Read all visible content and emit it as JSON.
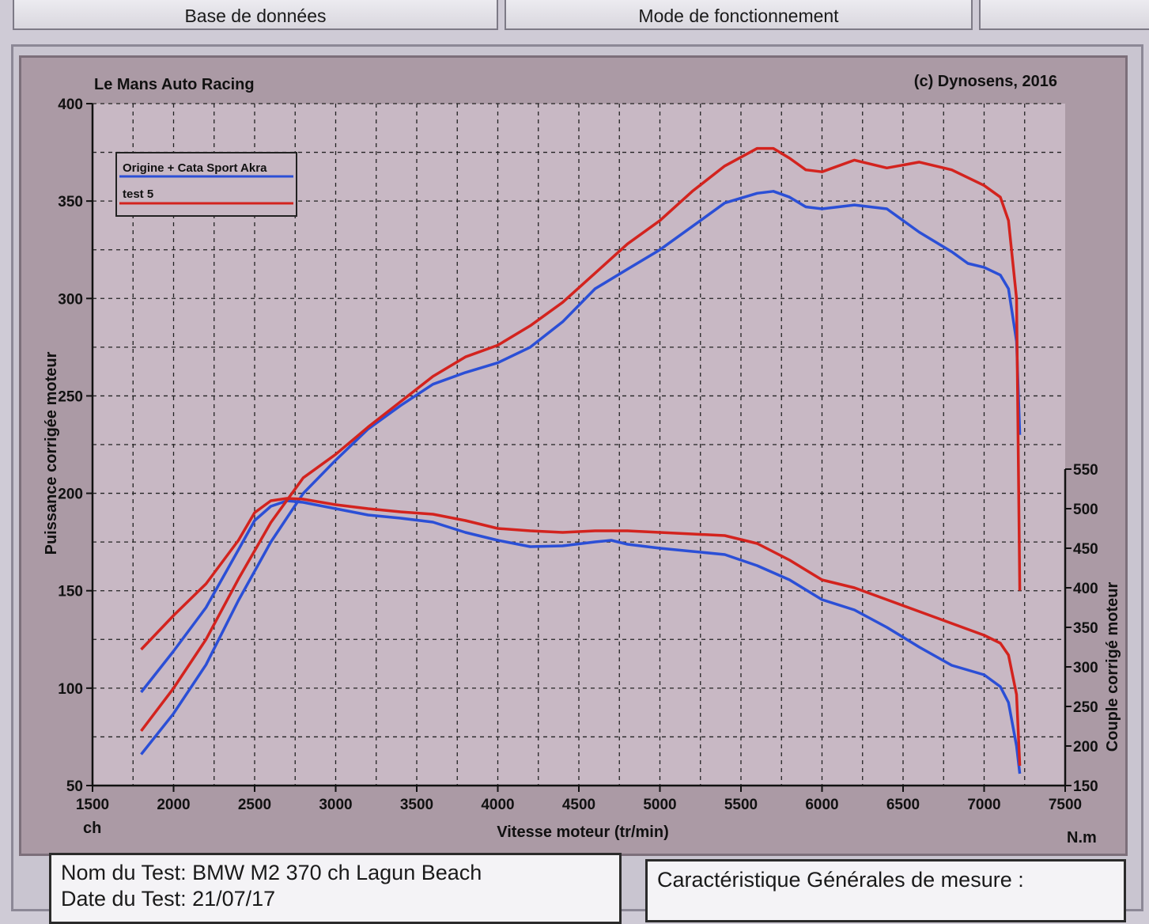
{
  "tabs": [
    "Base de données",
    "Mode de fonctionnement",
    ""
  ],
  "chart_data": {
    "type": "line",
    "title_left": "Le Mans Auto Racing",
    "title_right": "(c) Dynosens, 2016",
    "xlabel": "Vitesse moteur (tr/min)",
    "ylabel_left": "Puissance corrigée moteur",
    "ylabel_right": "Couple corrigé moteur",
    "unit_left": "ch",
    "unit_right": "N.m",
    "xlim": [
      1500,
      7500
    ],
    "ylim_left": [
      50,
      400
    ],
    "ylim_right": [
      150,
      550
    ],
    "x_ticks": [
      1500,
      2000,
      2500,
      3000,
      3500,
      4000,
      4500,
      5000,
      5500,
      6000,
      6500,
      7000,
      7500
    ],
    "y_ticks_left": [
      50,
      100,
      150,
      200,
      250,
      300,
      350,
      400
    ],
    "y_ticks_right": [
      150,
      200,
      250,
      300,
      350,
      400,
      450,
      500,
      550
    ],
    "grid": true,
    "legend_position": "top-left",
    "series": [
      {
        "name": "Origine + Cata Sport Akra",
        "color": "#2b4fd6",
        "power": [
          [
            1800,
            66
          ],
          [
            2000,
            87
          ],
          [
            2200,
            112
          ],
          [
            2400,
            145
          ],
          [
            2600,
            175
          ],
          [
            2800,
            200
          ],
          [
            3000,
            217
          ],
          [
            3200,
            233
          ],
          [
            3400,
            245
          ],
          [
            3600,
            256
          ],
          [
            3800,
            262
          ],
          [
            4000,
            267
          ],
          [
            4200,
            275
          ],
          [
            4400,
            288
          ],
          [
            4600,
            305
          ],
          [
            4800,
            315
          ],
          [
            5000,
            325
          ],
          [
            5200,
            337
          ],
          [
            5400,
            349
          ],
          [
            5600,
            354
          ],
          [
            5700,
            355
          ],
          [
            5800,
            352
          ],
          [
            5900,
            347
          ],
          [
            6000,
            346
          ],
          [
            6200,
            348
          ],
          [
            6400,
            346
          ],
          [
            6600,
            334
          ],
          [
            6800,
            324
          ],
          [
            6900,
            318
          ],
          [
            7000,
            316
          ],
          [
            7100,
            312
          ],
          [
            7150,
            305
          ],
          [
            7200,
            278
          ],
          [
            7220,
            230
          ]
        ],
        "torque": [
          [
            1800,
            268
          ],
          [
            2000,
            320
          ],
          [
            2200,
            375
          ],
          [
            2400,
            448
          ],
          [
            2500,
            485
          ],
          [
            2600,
            503
          ],
          [
            2700,
            510
          ],
          [
            2800,
            508
          ],
          [
            3000,
            500
          ],
          [
            3200,
            492
          ],
          [
            3400,
            488
          ],
          [
            3600,
            483
          ],
          [
            3800,
            470
          ],
          [
            4000,
            460
          ],
          [
            4200,
            452
          ],
          [
            4400,
            453
          ],
          [
            4600,
            458
          ],
          [
            4700,
            460
          ],
          [
            4800,
            455
          ],
          [
            5000,
            450
          ],
          [
            5200,
            446
          ],
          [
            5400,
            442
          ],
          [
            5600,
            428
          ],
          [
            5800,
            410
          ],
          [
            6000,
            385
          ],
          [
            6200,
            372
          ],
          [
            6400,
            350
          ],
          [
            6600,
            325
          ],
          [
            6800,
            302
          ],
          [
            7000,
            290
          ],
          [
            7100,
            275
          ],
          [
            7150,
            255
          ],
          [
            7200,
            200
          ],
          [
            7220,
            165
          ]
        ]
      },
      {
        "name": "test 5",
        "color": "#d3231e",
        "power": [
          [
            1800,
            78
          ],
          [
            2000,
            100
          ],
          [
            2200,
            125
          ],
          [
            2400,
            156
          ],
          [
            2600,
            185
          ],
          [
            2800,
            208
          ],
          [
            3000,
            220
          ],
          [
            3200,
            234
          ],
          [
            3400,
            247
          ],
          [
            3600,
            260
          ],
          [
            3800,
            270
          ],
          [
            4000,
            276
          ],
          [
            4200,
            286
          ],
          [
            4400,
            298
          ],
          [
            4600,
            313
          ],
          [
            4800,
            328
          ],
          [
            5000,
            340
          ],
          [
            5200,
            355
          ],
          [
            5400,
            368
          ],
          [
            5600,
            377
          ],
          [
            5700,
            377
          ],
          [
            5800,
            372
          ],
          [
            5900,
            366
          ],
          [
            6000,
            365
          ],
          [
            6200,
            371
          ],
          [
            6400,
            367
          ],
          [
            6600,
            370
          ],
          [
            6800,
            366
          ],
          [
            7000,
            358
          ],
          [
            7100,
            352
          ],
          [
            7150,
            340
          ],
          [
            7200,
            300
          ],
          [
            7220,
            150
          ]
        ],
        "torque": [
          [
            1800,
            322
          ],
          [
            2000,
            365
          ],
          [
            2200,
            405
          ],
          [
            2400,
            460
          ],
          [
            2500,
            495
          ],
          [
            2600,
            510
          ],
          [
            2700,
            513
          ],
          [
            2800,
            512
          ],
          [
            3000,
            505
          ],
          [
            3200,
            500
          ],
          [
            3400,
            496
          ],
          [
            3600,
            493
          ],
          [
            3800,
            485
          ],
          [
            4000,
            475
          ],
          [
            4200,
            472
          ],
          [
            4400,
            470
          ],
          [
            4600,
            472
          ],
          [
            4800,
            472
          ],
          [
            5000,
            470
          ],
          [
            5200,
            468
          ],
          [
            5400,
            466
          ],
          [
            5600,
            456
          ],
          [
            5800,
            435
          ],
          [
            6000,
            410
          ],
          [
            6200,
            400
          ],
          [
            6400,
            385
          ],
          [
            6600,
            370
          ],
          [
            6800,
            355
          ],
          [
            7000,
            340
          ],
          [
            7100,
            330
          ],
          [
            7150,
            315
          ],
          [
            7200,
            265
          ],
          [
            7220,
            175
          ]
        ]
      }
    ]
  },
  "test_info": {
    "name_line": "Nom du Test: BMW M2 370 ch Lagun Beach",
    "date_line": "Date du Test: 21/07/17"
  },
  "characteristics": {
    "title": "Caractéristique Générales de mesure :"
  }
}
